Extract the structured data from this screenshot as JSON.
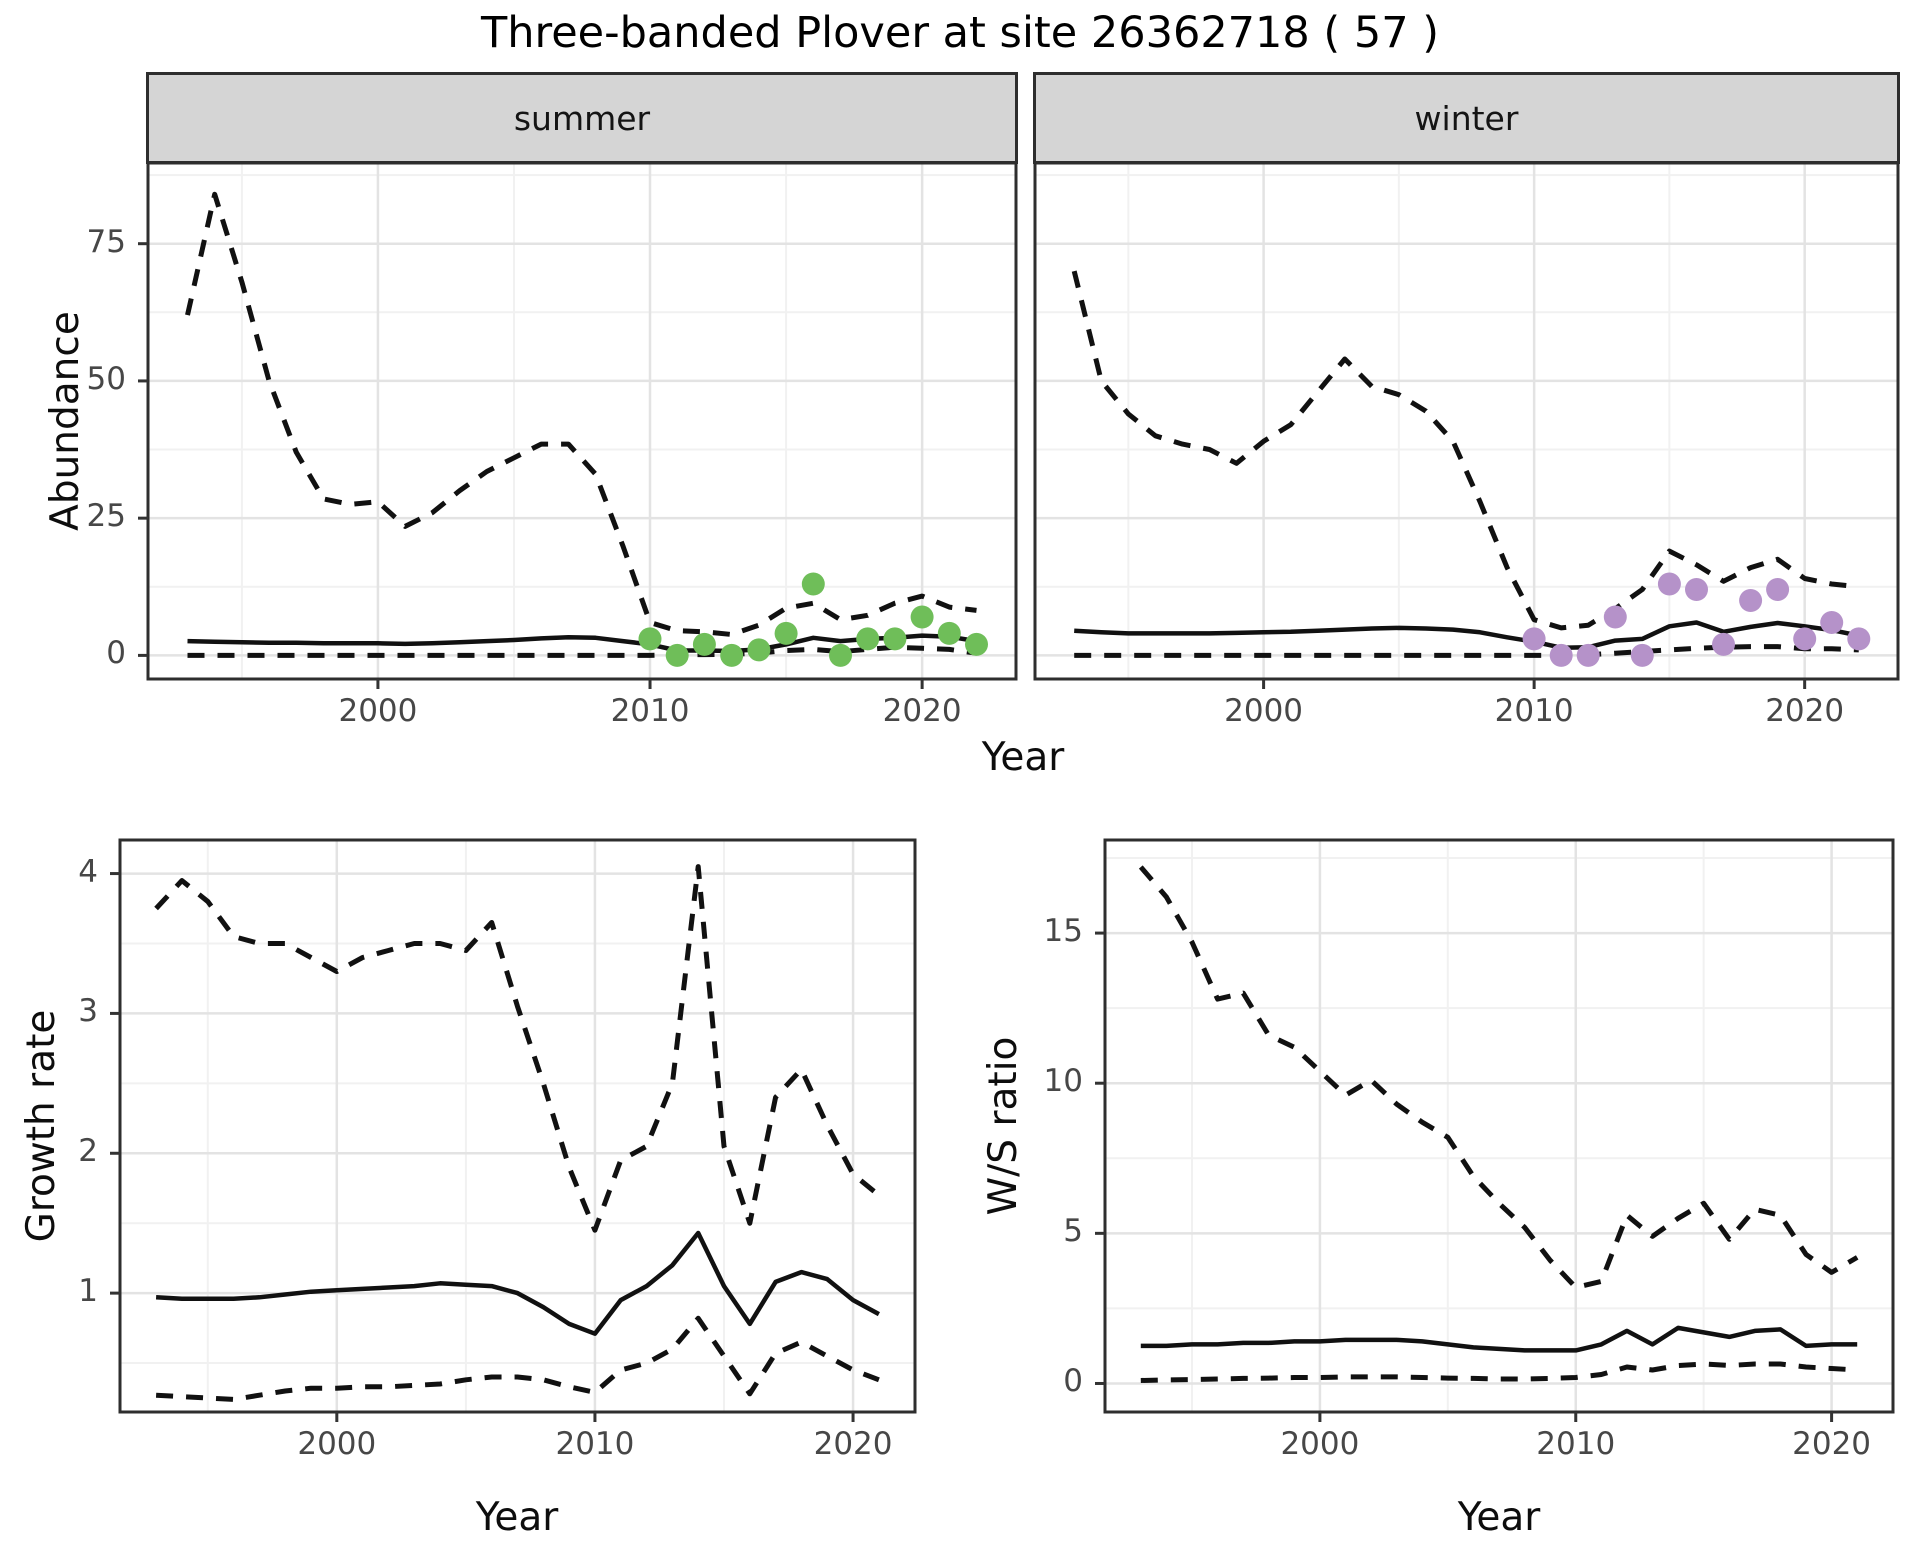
{
  "title": "Three-banded Plover at site 26362718 ( 57 )",
  "colors": {
    "summer_point": "#6fbe59",
    "winter_point": "#b592c9",
    "line": "#111111",
    "grid_major": "#e3e3e3",
    "grid_minor": "#f1f1f1",
    "panel_border": "#2e2e2e",
    "strip_bg": "#d5d5d5",
    "tick_text": "#474747"
  },
  "chart_data": [
    {
      "type": "line",
      "facet": "summer",
      "xlabel": "Year",
      "ylabel": "Abundance",
      "x": [
        1993,
        1994,
        1995,
        1996,
        1997,
        1998,
        1999,
        2000,
        2001,
        2002,
        2003,
        2004,
        2005,
        2006,
        2007,
        2008,
        2009,
        2010,
        2011,
        2012,
        2013,
        2014,
        2015,
        2016,
        2017,
        2018,
        2019,
        2020,
        2021,
        2022
      ],
      "xlim": [
        1991.55,
        2023.45
      ],
      "ylim": [
        -4.3,
        89.7
      ],
      "xticks": [
        2000,
        2010,
        2020
      ],
      "xticks_minor": [
        1995,
        2005,
        2015
      ],
      "yticks": [
        0,
        25,
        50,
        75
      ],
      "yticks_minor": [
        12.5,
        37.5,
        62.5,
        87.5
      ],
      "series": [
        {
          "name": "upper_95ci",
          "linetype": "dashed",
          "values": [
            62,
            84,
            68,
            50,
            37,
            28.5,
            27.5,
            28,
            23.5,
            26,
            30,
            33.5,
            36,
            38.5,
            38.5,
            33,
            20,
            6,
            4.5,
            4.3,
            3.8,
            5.5,
            8.6,
            9.5,
            6.5,
            7.3,
            9.5,
            10.8,
            8.8,
            8.2
          ]
        },
        {
          "name": "median",
          "linetype": "solid",
          "values": [
            2.6,
            2.5,
            2.4,
            2.3,
            2.3,
            2.2,
            2.2,
            2.2,
            2.1,
            2.2,
            2.4,
            2.6,
            2.8,
            3.1,
            3.3,
            3.2,
            2.6,
            2.0,
            0.9,
            0.9,
            0.8,
            1.1,
            2.0,
            3.2,
            2.6,
            3.0,
            3.2,
            3.6,
            3.4,
            2.6
          ]
        },
        {
          "name": "lower_95ci",
          "linetype": "dashed",
          "values": [
            0,
            0,
            0,
            0,
            0,
            0,
            0,
            0,
            0,
            0,
            0,
            0,
            0,
            0,
            0,
            0,
            0,
            0,
            0.1,
            0.15,
            0.2,
            0.4,
            0.9,
            1.1,
            0.7,
            1.1,
            1.5,
            1.3,
            1.1,
            0.4
          ]
        }
      ],
      "points": {
        "name": "observed_summer_counts",
        "color_key": "summer_point",
        "x": [
          2010,
          2011,
          2012,
          2013,
          2014,
          2015,
          2016,
          2017,
          2018,
          2019,
          2020,
          2021,
          2022
        ],
        "y": [
          3,
          0,
          2,
          0,
          1,
          4,
          13,
          0,
          3,
          3,
          7,
          4,
          2
        ]
      }
    },
    {
      "type": "line",
      "facet": "winter",
      "xlabel": "Year",
      "ylabel": "Abundance",
      "x": [
        1993,
        1994,
        1995,
        1996,
        1997,
        1998,
        1999,
        2000,
        2001,
        2002,
        2003,
        2004,
        2005,
        2006,
        2007,
        2008,
        2009,
        2010,
        2011,
        2012,
        2013,
        2014,
        2015,
        2016,
        2017,
        2018,
        2019,
        2020,
        2021,
        2022
      ],
      "xlim": [
        1991.55,
        2023.45
      ],
      "ylim": [
        -4.3,
        89.7
      ],
      "xticks": [
        2000,
        2010,
        2020
      ],
      "xticks_minor": [
        1995,
        2005,
        2015
      ],
      "yticks": [
        0,
        25,
        50,
        75
      ],
      "yticks_minor": [
        12.5,
        37.5,
        62.5,
        87.5
      ],
      "series": [
        {
          "name": "upper_95ci",
          "linetype": "dashed",
          "values": [
            70,
            50,
            44,
            40,
            38.5,
            37.5,
            35,
            39,
            42,
            48,
            54,
            49,
            47.5,
            44.5,
            39,
            28,
            16,
            6.5,
            5,
            5.5,
            8.5,
            12,
            19,
            16.5,
            13.5,
            16,
            17.5,
            14,
            13,
            12.5
          ]
        },
        {
          "name": "median",
          "linetype": "solid",
          "values": [
            4.5,
            4.2,
            4.0,
            4.0,
            4.0,
            4.0,
            4.1,
            4.2,
            4.3,
            4.5,
            4.7,
            4.9,
            5.0,
            4.9,
            4.7,
            4.2,
            3.3,
            2.5,
            1.4,
            1.5,
            2.7,
            3.0,
            5.3,
            6.0,
            4.3,
            5.2,
            5.9,
            5.3,
            4.6,
            3.6
          ]
        },
        {
          "name": "lower_95ci",
          "linetype": "dashed",
          "values": [
            0,
            0,
            0,
            0,
            0,
            0,
            0,
            0,
            0,
            0,
            0,
            0,
            0,
            0,
            0,
            0,
            0,
            0,
            0,
            0.1,
            0.4,
            0.7,
            1.0,
            1.3,
            1.5,
            1.6,
            1.6,
            1.2,
            1.2,
            1.0
          ]
        }
      ],
      "points": {
        "name": "observed_winter_counts",
        "color_key": "winter_point",
        "x": [
          2010,
          2011,
          2012,
          2013,
          2014,
          2015,
          2016,
          2017,
          2018,
          2019,
          2020,
          2021,
          2022
        ],
        "y": [
          3,
          0,
          0,
          7,
          0,
          13,
          12,
          2,
          10,
          12,
          3,
          6,
          3
        ]
      }
    },
    {
      "type": "line",
      "xlabel": "Year",
      "ylabel": "Growth rate",
      "x": [
        1993,
        1994,
        1995,
        1996,
        1997,
        1998,
        1999,
        2000,
        2001,
        2002,
        2003,
        2004,
        2005,
        2006,
        2007,
        2008,
        2009,
        2010,
        2011,
        2012,
        2013,
        2014,
        2015,
        2016,
        2017,
        2018,
        2019,
        2020,
        2021
      ],
      "xlim": [
        1991.6,
        2022.4
      ],
      "ylim": [
        0.15,
        4.24
      ],
      "xticks": [
        2000,
        2010,
        2020
      ],
      "xticks_minor": [
        1995,
        2005,
        2015
      ],
      "yticks": [
        1,
        2,
        3,
        4
      ],
      "yticks_minor": [
        0.5,
        1.5,
        2.5,
        3.5
      ],
      "series": [
        {
          "name": "upper_95ci",
          "linetype": "dashed",
          "values": [
            3.75,
            3.95,
            3.8,
            3.55,
            3.5,
            3.5,
            3.4,
            3.3,
            3.4,
            3.45,
            3.5,
            3.5,
            3.45,
            3.65,
            3.05,
            2.5,
            1.9,
            1.45,
            1.95,
            2.05,
            2.5,
            4.05,
            2.05,
            1.5,
            2.4,
            2.6,
            2.2,
            1.85,
            1.7
          ]
        },
        {
          "name": "median",
          "linetype": "solid",
          "values": [
            0.97,
            0.96,
            0.96,
            0.96,
            0.97,
            0.99,
            1.01,
            1.02,
            1.03,
            1.04,
            1.05,
            1.07,
            1.06,
            1.05,
            1.0,
            0.9,
            0.78,
            0.71,
            0.95,
            1.05,
            1.2,
            1.43,
            1.05,
            0.78,
            1.08,
            1.15,
            1.1,
            0.95,
            0.85
          ]
        },
        {
          "name": "lower_95ci",
          "linetype": "dashed",
          "values": [
            0.27,
            0.26,
            0.25,
            0.24,
            0.27,
            0.3,
            0.32,
            0.32,
            0.33,
            0.33,
            0.34,
            0.35,
            0.38,
            0.4,
            0.4,
            0.38,
            0.33,
            0.29,
            0.45,
            0.5,
            0.6,
            0.82,
            0.55,
            0.28,
            0.57,
            0.65,
            0.55,
            0.45,
            0.38
          ]
        }
      ]
    },
    {
      "type": "line",
      "xlabel": "Year",
      "ylabel": "W/S ratio",
      "x": [
        1993,
        1994,
        1995,
        1996,
        1997,
        1998,
        1999,
        2000,
        2001,
        2002,
        2003,
        2004,
        2005,
        2006,
        2007,
        2008,
        2009,
        2010,
        2011,
        2012,
        2013,
        2014,
        2015,
        2016,
        2017,
        2018,
        2019,
        2020,
        2021
      ],
      "xlim": [
        1991.6,
        2022.4
      ],
      "ylim": [
        -0.95,
        18.1
      ],
      "xticks": [
        2000,
        2010,
        2020
      ],
      "xticks_minor": [
        1995,
        2005,
        2015
      ],
      "yticks": [
        0,
        5,
        10,
        15
      ],
      "yticks_minor": [
        2.5,
        7.5,
        12.5,
        17.5
      ],
      "series": [
        {
          "name": "upper_95ci",
          "linetype": "dashed",
          "values": [
            17.2,
            16.2,
            14.7,
            12.8,
            13.0,
            11.6,
            11.2,
            10.4,
            9.6,
            10.1,
            9.3,
            8.7,
            8.2,
            6.9,
            6.0,
            5.2,
            4.1,
            3.2,
            3.4,
            5.6,
            4.9,
            5.5,
            6.0,
            4.8,
            5.8,
            5.6,
            4.3,
            3.7,
            4.2
          ]
        },
        {
          "name": "median",
          "linetype": "solid",
          "values": [
            1.25,
            1.25,
            1.3,
            1.3,
            1.35,
            1.35,
            1.4,
            1.4,
            1.45,
            1.45,
            1.45,
            1.4,
            1.3,
            1.2,
            1.15,
            1.1,
            1.1,
            1.1,
            1.3,
            1.75,
            1.3,
            1.85,
            1.7,
            1.55,
            1.75,
            1.8,
            1.25,
            1.3,
            1.3
          ]
        },
        {
          "name": "lower_95ci",
          "linetype": "dashed",
          "values": [
            0.1,
            0.12,
            0.13,
            0.15,
            0.17,
            0.18,
            0.2,
            0.2,
            0.22,
            0.22,
            0.22,
            0.2,
            0.18,
            0.17,
            0.15,
            0.15,
            0.17,
            0.2,
            0.3,
            0.55,
            0.45,
            0.6,
            0.65,
            0.6,
            0.65,
            0.65,
            0.55,
            0.5,
            0.45
          ]
        }
      ]
    }
  ]
}
